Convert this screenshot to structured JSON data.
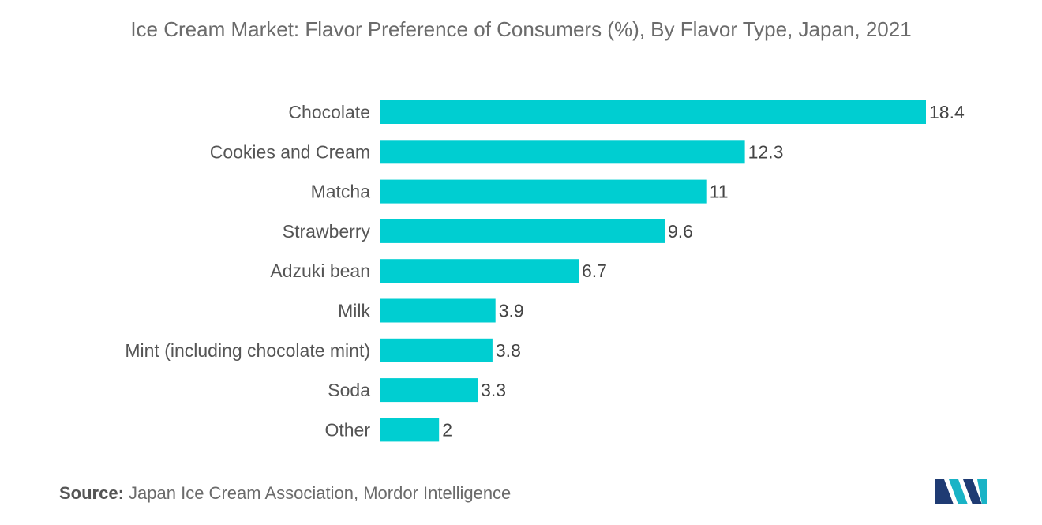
{
  "chart_data": {
    "type": "bar",
    "orientation": "horizontal",
    "title": "Ice Cream Market: Flavor Preference of Consumers (%), By Flavor Type, Japan, 2021",
    "categories": [
      "Chocolate",
      "Cookies and Cream",
      "Matcha",
      "Strawberry",
      "Adzuki bean",
      "Milk",
      "Mint (including chocolate mint)",
      "Soda",
      "Other"
    ],
    "values": [
      18.4,
      12.3,
      11,
      9.6,
      6.7,
      3.9,
      3.8,
      3.3,
      2
    ],
    "value_labels": [
      "18.4",
      "12.3",
      "11",
      "9.6",
      "6.7",
      "3.9",
      "3.8",
      "3.3",
      "2"
    ],
    "xlim": [
      0,
      18.4
    ],
    "grid": false,
    "legend": "none",
    "bar_color": "#00ced1"
  },
  "source": {
    "label": "Source:",
    "text": "Japan Ice Cream Association, Mordor Intelligence"
  },
  "logo": {
    "icon": "mordor-intelligence-logo-icon",
    "colors": [
      "#1f3b73",
      "#19b3c6"
    ]
  }
}
